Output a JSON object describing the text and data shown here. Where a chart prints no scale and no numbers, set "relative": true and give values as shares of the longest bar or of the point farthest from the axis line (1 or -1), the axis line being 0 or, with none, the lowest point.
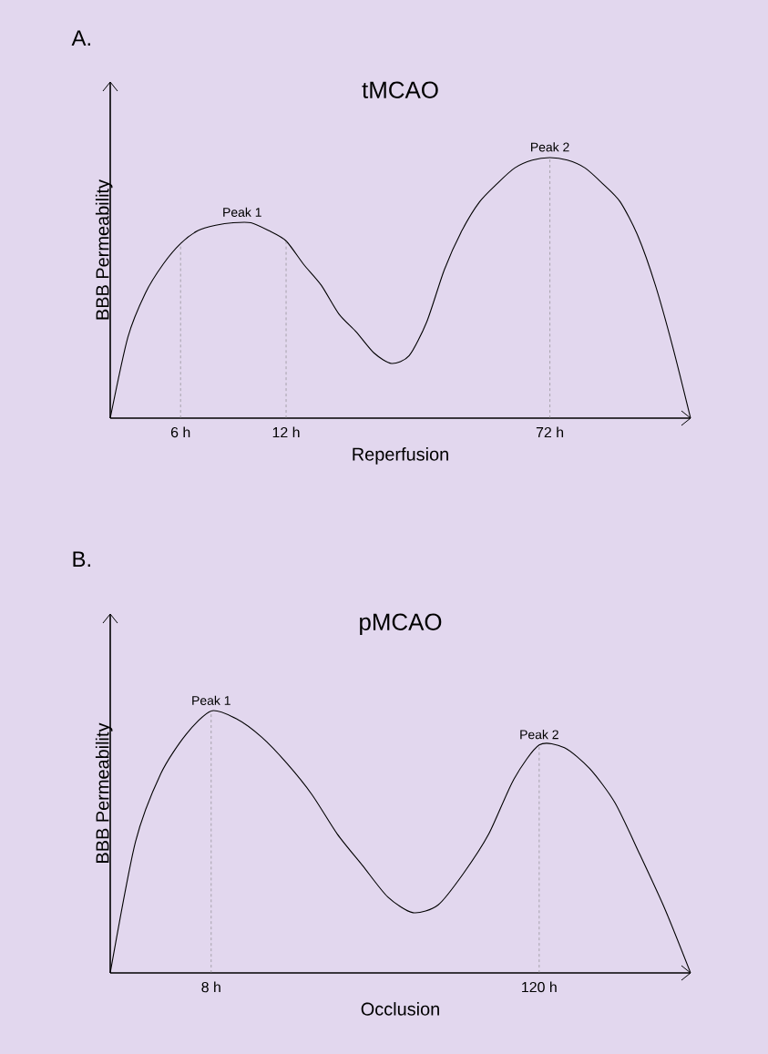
{
  "chart_data": [
    {
      "type": "line",
      "title": "tMCAO",
      "xlabel": "Reperfusion",
      "ylabel": "BBB Permeability",
      "relative": true,
      "color": "#000000",
      "marker": "none",
      "line_style": "solid",
      "grid": false,
      "categories": [
        null,
        null,
        null,
        null,
        "6 h",
        null,
        null,
        null,
        null,
        null,
        "12 h",
        null,
        null,
        null,
        null,
        null,
        null,
        null,
        null,
        null,
        null,
        null,
        null,
        null,
        null,
        "72 h",
        null,
        null,
        null,
        null,
        null,
        null,
        null,
        null
      ],
      "values": [
        0,
        0.31,
        0.48,
        0.59,
        0.67,
        0.72,
        0.74,
        0.75,
        0.75,
        0.72,
        0.68,
        0.59,
        0.51,
        0.4,
        0.33,
        0.25,
        0.21,
        0.24,
        0.37,
        0.57,
        0.72,
        0.83,
        0.9,
        0.96,
        0.99,
        1.0,
        0.99,
        0.96,
        0.9,
        0.83,
        0.7,
        0.51,
        0.27,
        0
      ],
      "ref_lines": [
        {
          "axis": "x",
          "value": "6 h",
          "color": "#808080",
          "line_style": "dashed"
        },
        {
          "axis": "x",
          "value": "12 h",
          "color": "#808080",
          "line_style": "dashed"
        },
        {
          "axis": "x",
          "value": "72 h",
          "color": "#808080",
          "line_style": "dashed"
        }
      ],
      "annotations": [
        "A.",
        {
          "text": "Peak 1",
          "y": 0.75
        },
        {
          "text": "Peak 2",
          "x": "72 h",
          "y": 1.0
        }
      ]
    },
    {
      "type": "line",
      "title": "pMCAO",
      "xlabel": "Occlusion",
      "ylabel": "BBB Permeability",
      "relative": true,
      "color": "#000000",
      "marker": "none",
      "line_style": "solid",
      "grid": false,
      "categories": [
        null,
        null,
        null,
        null,
        "8 h",
        null,
        null,
        null,
        null,
        null,
        null,
        null,
        null,
        null,
        null,
        null,
        null,
        "120 h",
        null,
        null,
        null,
        null,
        null,
        null
      ],
      "values": [
        0,
        0.5,
        0.76,
        0.91,
        1.0,
        0.97,
        0.9,
        0.8,
        0.68,
        0.53,
        0.41,
        0.29,
        0.23,
        0.26,
        0.38,
        0.53,
        0.74,
        0.87,
        0.86,
        0.78,
        0.65,
        0.45,
        0.24,
        0
      ],
      "ref_lines": [
        {
          "axis": "x",
          "value": "8 h",
          "color": "#808080",
          "line_style": "dashed"
        },
        {
          "axis": "x",
          "value": "120 h",
          "color": "#808080",
          "line_style": "dashed"
        }
      ],
      "annotations": [
        "B.",
        {
          "text": "Peak 1",
          "x": "8 h",
          "y": 1.0
        },
        {
          "text": "Peak 2",
          "x": "120 h",
          "y": 0.87
        }
      ]
    }
  ]
}
